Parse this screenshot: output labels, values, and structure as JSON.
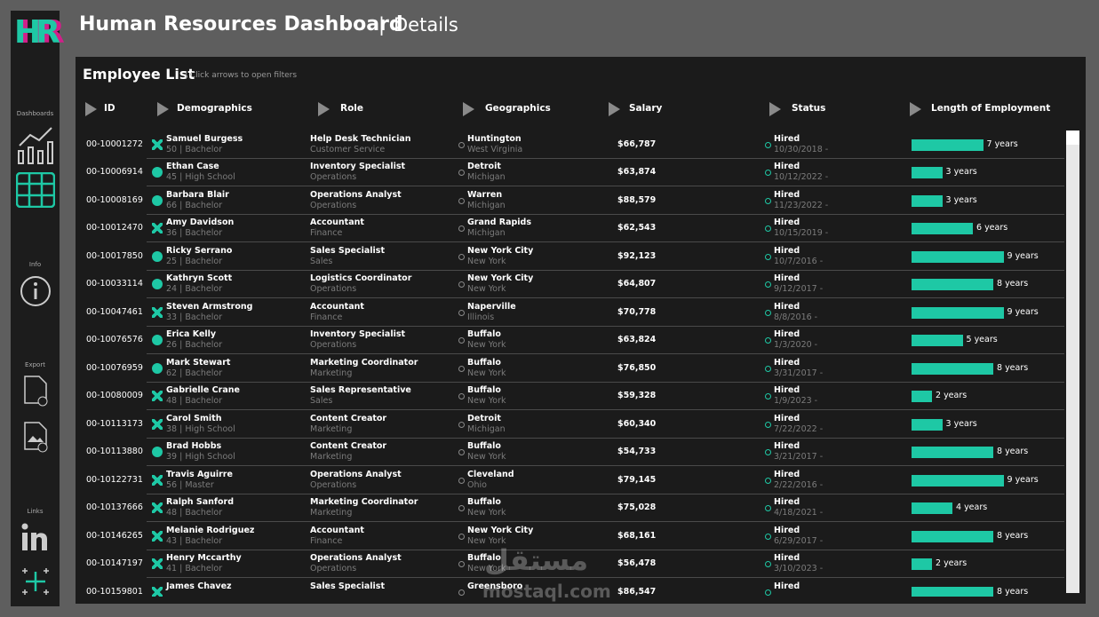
{
  "header": {
    "logo": "HR",
    "title": "Human Resources Dashboard",
    "separator": "|",
    "subtitle": "Details"
  },
  "sidebar": {
    "sections": [
      "Dashboards",
      "Info",
      "Export",
      "Links"
    ]
  },
  "panel": {
    "title": "Employee List",
    "hint": "| Click arrows to open filters",
    "columns": [
      "ID",
      "Demographics",
      "Role",
      "Geographics",
      "Salary",
      "Status",
      "Length of Employment"
    ],
    "rows": [
      {
        "id": "00-10001272",
        "name": "Samuel Burgess",
        "demo": "50 | Bachelor",
        "icon": "x",
        "role": "Help Desk Technician",
        "dept": "Customer Service",
        "city": "Huntington",
        "state": "West Virginia",
        "salary": "$66,787",
        "status": "Hired",
        "date": "10/30/2018 -",
        "years": 7,
        "years_label": "7 years"
      },
      {
        "id": "00-10006914",
        "name": "Ethan Case",
        "demo": "45 | High School",
        "icon": "dot",
        "role": "Inventory Specialist",
        "dept": "Operations",
        "city": "Detroit",
        "state": "Michigan",
        "salary": "$63,874",
        "status": "Hired",
        "date": "10/12/2022 -",
        "years": 3,
        "years_label": "3 years"
      },
      {
        "id": "00-10008169",
        "name": "Barbara Blair",
        "demo": "66 | Bachelor",
        "icon": "dot",
        "role": "Operations Analyst",
        "dept": "Operations",
        "city": "Warren",
        "state": "Michigan",
        "salary": "$88,579",
        "status": "Hired",
        "date": "11/23/2022 -",
        "years": 3,
        "years_label": "3 years"
      },
      {
        "id": "00-10012470",
        "name": "Amy Davidson",
        "demo": "36 | Bachelor",
        "icon": "x",
        "role": "Accountant",
        "dept": "Finance",
        "city": "Grand Rapids",
        "state": "Michigan",
        "salary": "$62,543",
        "status": "Hired",
        "date": "10/15/2019 -",
        "years": 6,
        "years_label": "6 years"
      },
      {
        "id": "00-10017850",
        "name": "Ricky Serrano",
        "demo": "25 | Bachelor",
        "icon": "dot",
        "role": "Sales Specialist",
        "dept": "Sales",
        "city": "New York City",
        "state": "New York",
        "salary": "$92,123",
        "status": "Hired",
        "date": "10/7/2016 -",
        "years": 9,
        "years_label": "9 years"
      },
      {
        "id": "00-10033114",
        "name": "Kathryn Scott",
        "demo": "24 | Bachelor",
        "icon": "dot",
        "role": "Logistics Coordinator",
        "dept": "Operations",
        "city": "New York City",
        "state": "New York",
        "salary": "$64,807",
        "status": "Hired",
        "date": "9/12/2017 -",
        "years": 8,
        "years_label": "8 years"
      },
      {
        "id": "00-10047461",
        "name": "Steven Armstrong",
        "demo": "33 | Bachelor",
        "icon": "x",
        "role": "Accountant",
        "dept": "Finance",
        "city": "Naperville",
        "state": "Illinois",
        "salary": "$70,778",
        "status": "Hired",
        "date": "8/8/2016 -",
        "years": 9,
        "years_label": "9 years"
      },
      {
        "id": "00-10076576",
        "name": "Erica Kelly",
        "demo": "26 | Bachelor",
        "icon": "dot",
        "role": "Inventory Specialist",
        "dept": "Operations",
        "city": "Buffalo",
        "state": "New York",
        "salary": "$63,824",
        "status": "Hired",
        "date": "1/3/2020 -",
        "years": 5,
        "years_label": "5 years"
      },
      {
        "id": "00-10076959",
        "name": "Mark Stewart",
        "demo": "62 | Bachelor",
        "icon": "dot",
        "role": "Marketing Coordinator",
        "dept": "Marketing",
        "city": "Buffalo",
        "state": "New York",
        "salary": "$76,850",
        "status": "Hired",
        "date": "3/31/2017 -",
        "years": 8,
        "years_label": "8 years"
      },
      {
        "id": "00-10080009",
        "name": "Gabrielle Crane",
        "demo": "48 | Bachelor",
        "icon": "x",
        "role": "Sales Representative",
        "dept": "Sales",
        "city": "Buffalo",
        "state": "New York",
        "salary": "$59,328",
        "status": "Hired",
        "date": "1/9/2023 -",
        "years": 2,
        "years_label": "2 years"
      },
      {
        "id": "00-10113173",
        "name": "Carol Smith",
        "demo": "38 | High School",
        "icon": "x",
        "role": "Content Creator",
        "dept": "Marketing",
        "city": "Detroit",
        "state": "Michigan",
        "salary": "$60,340",
        "status": "Hired",
        "date": "7/22/2022 -",
        "years": 3,
        "years_label": "3 years"
      },
      {
        "id": "00-10113880",
        "name": "Brad Hobbs",
        "demo": "39 | High School",
        "icon": "dot",
        "role": "Content Creator",
        "dept": "Marketing",
        "city": "Buffalo",
        "state": "New York",
        "salary": "$54,733",
        "status": "Hired",
        "date": "3/21/2017 -",
        "years": 8,
        "years_label": "8 years"
      },
      {
        "id": "00-10122731",
        "name": "Travis Aguirre",
        "demo": "56 | Master",
        "icon": "x",
        "role": "Operations Analyst",
        "dept": "Operations",
        "city": "Cleveland",
        "state": "Ohio",
        "salary": "$79,145",
        "status": "Hired",
        "date": "2/22/2016 -",
        "years": 9,
        "years_label": "9 years"
      },
      {
        "id": "00-10137666",
        "name": "Ralph Sanford",
        "demo": "48 | Bachelor",
        "icon": "x",
        "role": "Marketing Coordinator",
        "dept": "Marketing",
        "city": "Buffalo",
        "state": "New York",
        "salary": "$75,028",
        "status": "Hired",
        "date": "4/18/2021 -",
        "years": 4,
        "years_label": "4 years"
      },
      {
        "id": "00-10146265",
        "name": "Melanie Rodriguez",
        "demo": "43 | Bachelor",
        "icon": "x",
        "role": "Accountant",
        "dept": "Finance",
        "city": "New York City",
        "state": "New York",
        "salary": "$68,161",
        "status": "Hired",
        "date": "6/29/2017 -",
        "years": 8,
        "years_label": "8 years"
      },
      {
        "id": "00-10147197",
        "name": "Henry Mccarthy",
        "demo": "41 | Bachelor",
        "icon": "x",
        "role": "Operations Analyst",
        "dept": "Operations",
        "city": "Buffalo",
        "state": "New York",
        "salary": "$56,478",
        "status": "Hired",
        "date": "3/10/2023 -",
        "years": 2,
        "years_label": "2 years"
      },
      {
        "id": "00-10159801",
        "name": "James Chavez",
        "icon": "x",
        "role": "Sales Specialist",
        "city": "Greensboro",
        "salary": "$86,547",
        "status": "Hired",
        "years": 8,
        "years_label": "8 years"
      }
    ]
  },
  "watermark": {
    "arabic": "مستقل",
    "latin": "mostaql.com"
  }
}
